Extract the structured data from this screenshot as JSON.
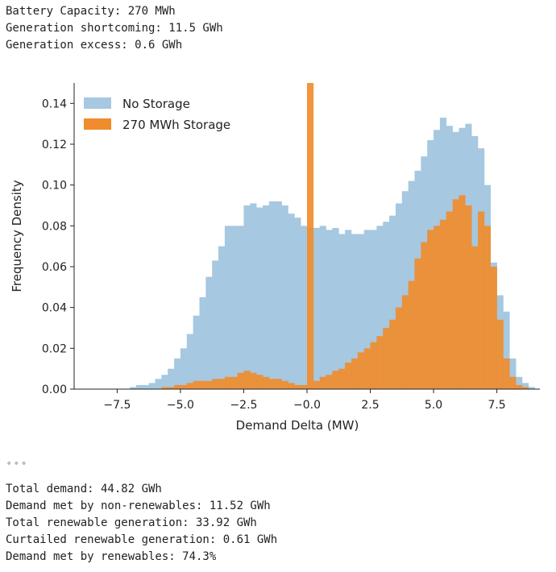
{
  "output_top": [
    "Battery Capacity: 270 MWh",
    "Generation shortcoming: 11.5 GWh",
    "Generation excess: 0.6 GWh"
  ],
  "ellipsis": "•••",
  "output_bottom": [
    "Total demand: 44.82 GWh",
    "Demand met by non-renewables: 11.52 GWh",
    "Total renewable generation: 33.92 GWh",
    "Curtailed renewable generation: 0.61 GWh",
    "Demand met by renewables: 74.3%"
  ],
  "chart_data": {
    "type": "bar",
    "title": "",
    "xlabel": "Demand Delta (MW)",
    "ylabel": "Frequency Density",
    "xlim": [
      -9.2,
      9.2
    ],
    "ylim": [
      0,
      0.15
    ],
    "xticks": [
      -7.5,
      -5.0,
      -2.5,
      -0.0,
      2.5,
      5.0,
      7.5
    ],
    "xtick_labels": [
      "−7.5",
      "−5.0",
      "−2.5",
      "−0.0",
      "2.5",
      "5.0",
      "7.5"
    ],
    "yticks": [
      0.0,
      0.02,
      0.04,
      0.06,
      0.08,
      0.1,
      0.12,
      0.14
    ],
    "ytick_labels": [
      "0.00",
      "0.02",
      "0.04",
      "0.06",
      "0.08",
      "0.10",
      "0.12",
      "0.14"
    ],
    "bin_start": -7.0,
    "bin_width": 0.25,
    "legend_position": "top-left",
    "series": [
      {
        "name": "No Storage",
        "color": "#a6c8e0",
        "values": [
          0.001,
          0.002,
          0.002,
          0.003,
          0.005,
          0.007,
          0.01,
          0.015,
          0.02,
          0.027,
          0.036,
          0.045,
          0.055,
          0.063,
          0.07,
          0.08,
          0.08,
          0.08,
          0.09,
          0.091,
          0.089,
          0.09,
          0.092,
          0.092,
          0.09,
          0.086,
          0.084,
          0.08,
          0.079,
          0.079,
          0.08,
          0.078,
          0.079,
          0.076,
          0.078,
          0.076,
          0.076,
          0.078,
          0.078,
          0.08,
          0.082,
          0.085,
          0.091,
          0.097,
          0.102,
          0.107,
          0.114,
          0.122,
          0.127,
          0.133,
          0.129,
          0.126,
          0.128,
          0.13,
          0.124,
          0.118,
          0.1,
          0.062,
          0.046,
          0.038,
          0.015,
          0.006,
          0.003,
          0.001
        ]
      },
      {
        "name": "270 MWh Storage",
        "color": "#f08c2e",
        "values": [
          0.0,
          0.0,
          0.0,
          0.0,
          0.0,
          0.001,
          0.001,
          0.002,
          0.002,
          0.003,
          0.004,
          0.004,
          0.004,
          0.005,
          0.005,
          0.006,
          0.006,
          0.008,
          0.009,
          0.008,
          0.007,
          0.006,
          0.005,
          0.005,
          0.004,
          0.003,
          0.002,
          0.002,
          0.15,
          0.004,
          0.006,
          0.007,
          0.009,
          0.01,
          0.013,
          0.015,
          0.018,
          0.02,
          0.023,
          0.026,
          0.03,
          0.034,
          0.04,
          0.046,
          0.053,
          0.064,
          0.072,
          0.078,
          0.08,
          0.083,
          0.087,
          0.093,
          0.095,
          0.09,
          0.07,
          0.087,
          0.08,
          0.06,
          0.034,
          0.015,
          0.006,
          0.002,
          0.001,
          0.0
        ]
      }
    ]
  }
}
